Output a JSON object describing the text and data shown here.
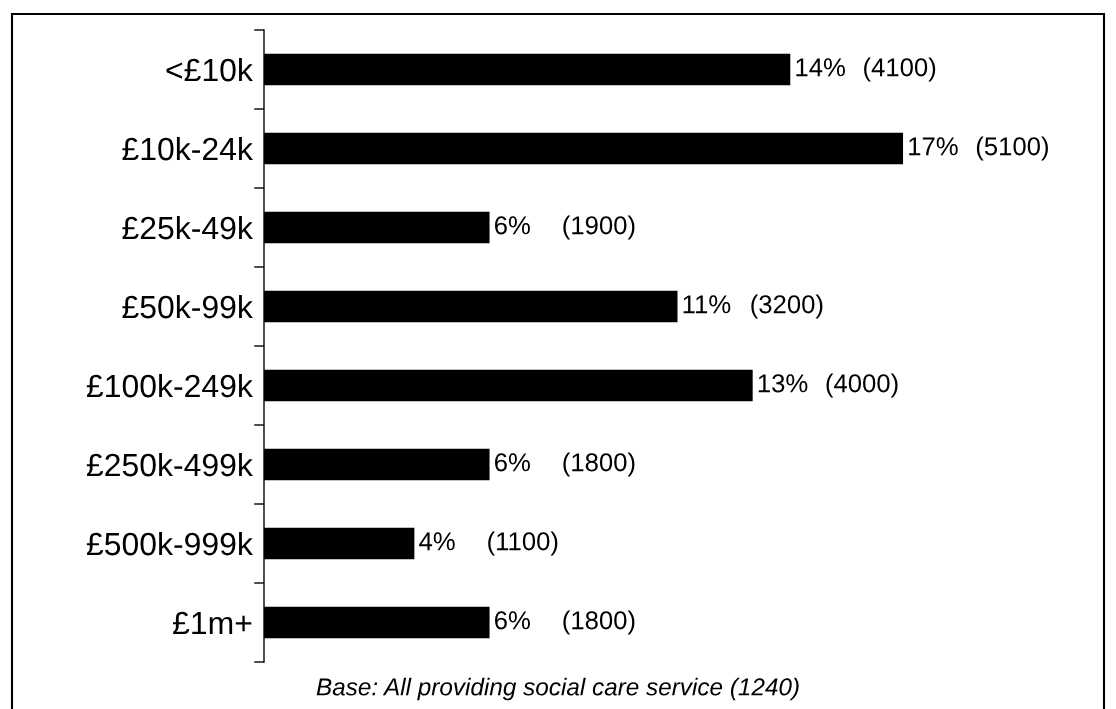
{
  "chart_data": {
    "type": "bar",
    "orientation": "horizontal",
    "categories": [
      "<£10k",
      "£10k-24k",
      "£25k-49k",
      "£50k-99k",
      "£100k-249k",
      "£250k-499k",
      "£500k-999k",
      "£1m+"
    ],
    "values": [
      14,
      17,
      6,
      11,
      13,
      6,
      4,
      6
    ],
    "color": "#000000",
    "value_labels": [
      "14%",
      "17%",
      "6%",
      "11%",
      "13%",
      "6%",
      "4%",
      "6%"
    ],
    "annotations": [
      {
        "text": "(4100)",
        "x": 14,
        "y": "<£10k"
      },
      {
        "text": "(5100)",
        "x": 17,
        "y": "£10k-24k"
      },
      {
        "text": "(1900)",
        "x": 6,
        "y": "£25k-49k"
      },
      {
        "text": "(3200)",
        "x": 11,
        "y": "£50k-99k"
      },
      {
        "text": "(4000)",
        "x": 13,
        "y": "£100k-249k"
      },
      {
        "text": "(1800)",
        "x": 6,
        "y": "£250k-499k"
      },
      {
        "text": "(1100)",
        "x": 4,
        "y": "£500k-999k"
      },
      {
        "text": "(1800)",
        "x": 6,
        "y": "£1m+"
      },
      "Base: All providing social care service (1240)"
    ],
    "tick_labels": "y",
    "grid": false,
    "legend": false
  }
}
